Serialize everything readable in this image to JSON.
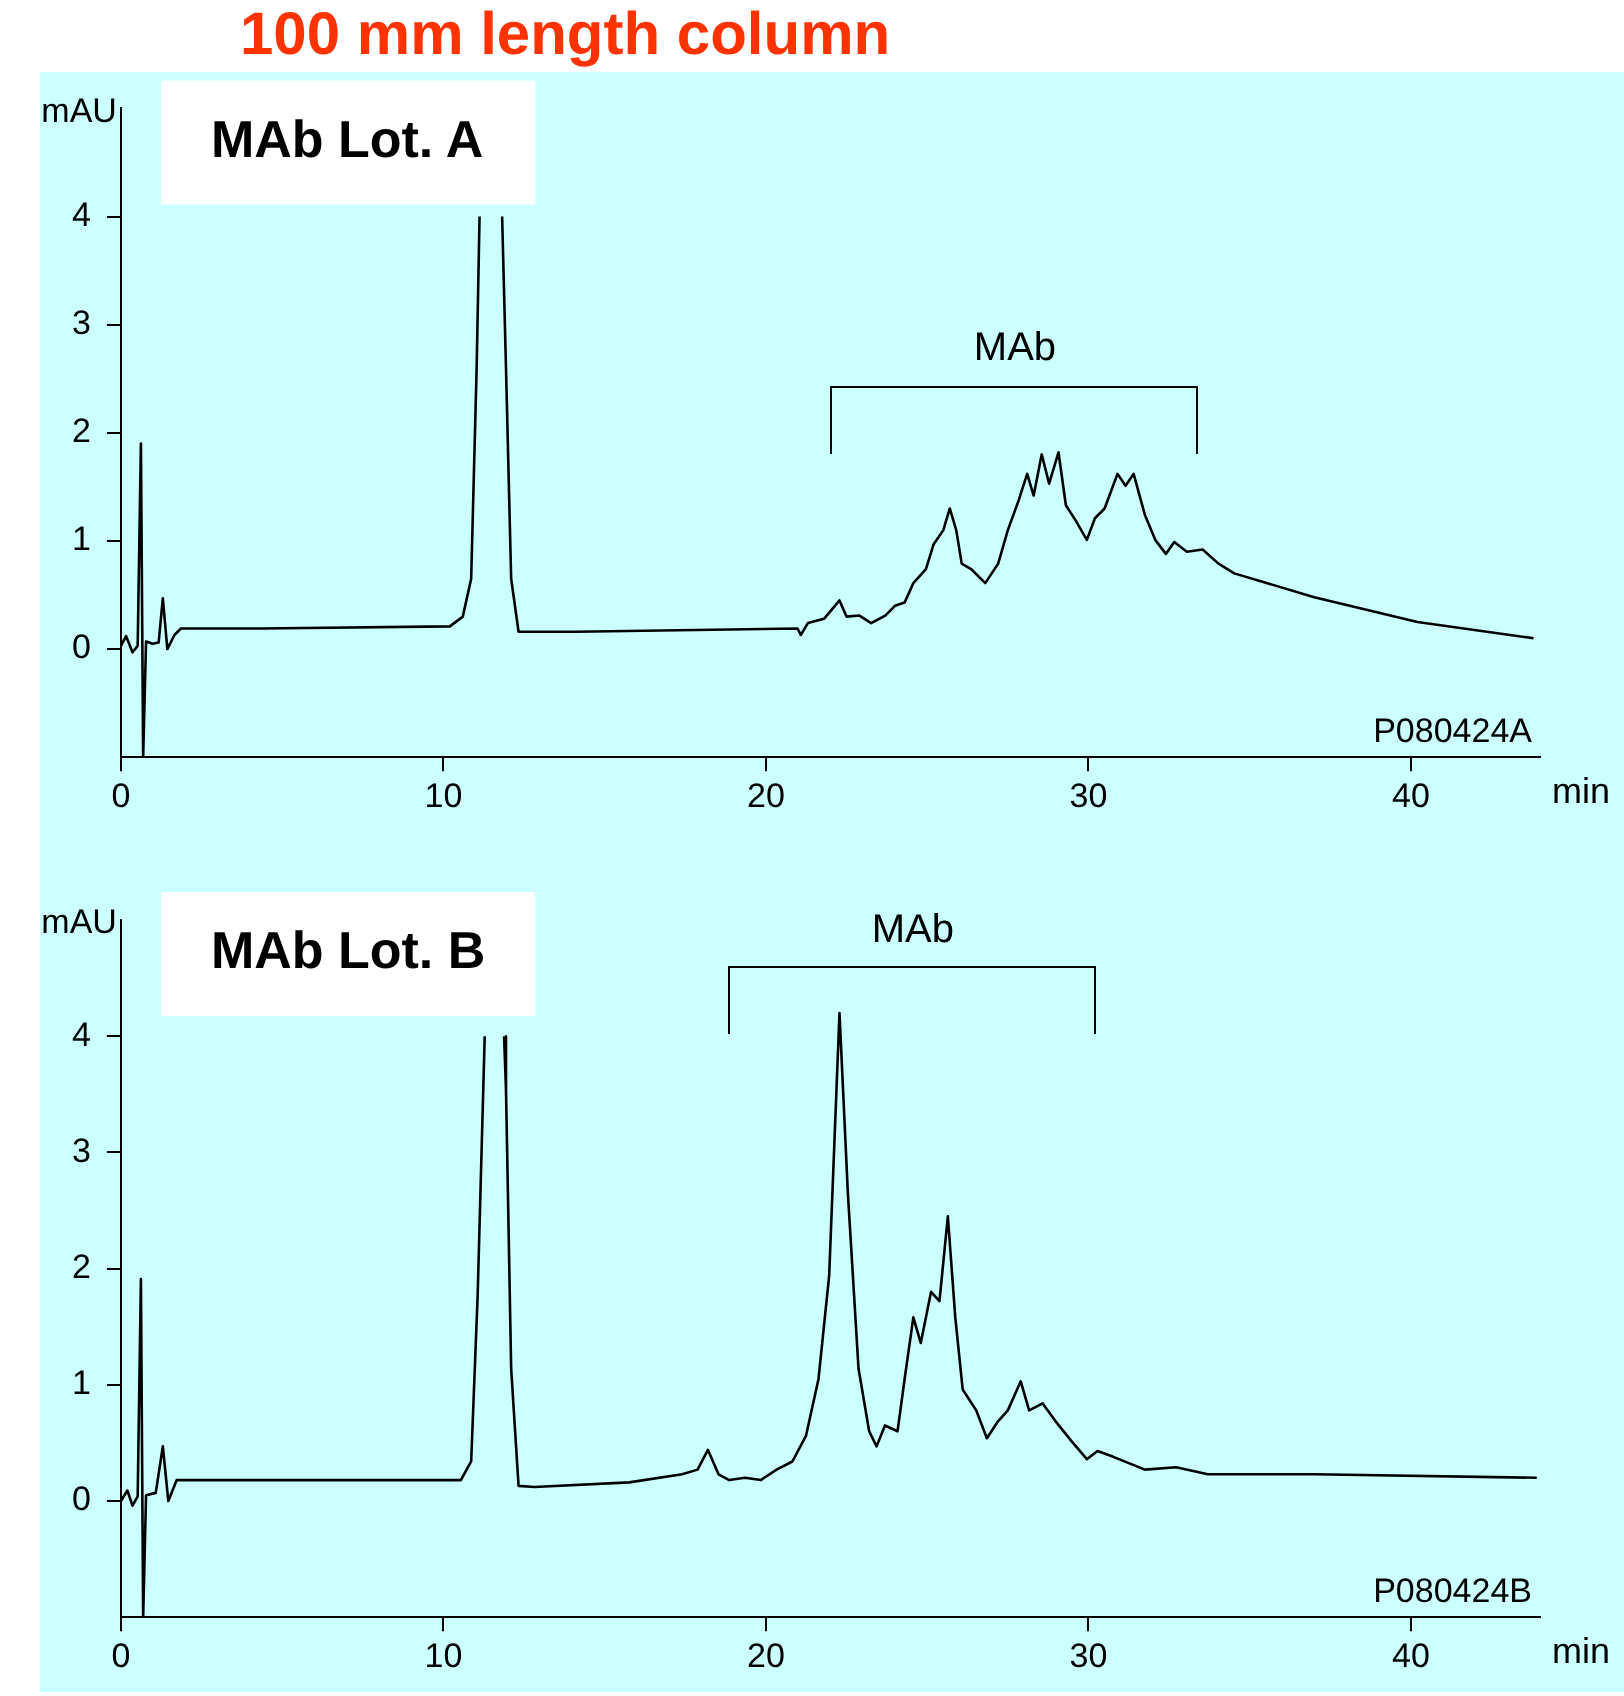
{
  "chart_data": [
    {
      "type": "line",
      "title": "100 mm length column",
      "xlabel": "min",
      "ylabel": "mAU",
      "xlim": [
        0,
        44
      ],
      "ylim": [
        -1,
        5
      ],
      "xticks": [
        0,
        10,
        20,
        30,
        40
      ],
      "yticks": [
        0,
        1,
        2,
        3,
        4
      ],
      "grid": false,
      "legend": false,
      "marker": "none",
      "annotations": [
        "MAb Lot. A",
        "P080424A",
        "MAb"
      ],
      "series": [
        {
          "color": "#000000",
          "x": [
            0,
            0.16,
            0.36,
            0.52,
            0.62,
            0.69,
            0.78,
            0.98,
            1.17,
            1.3,
            1.44,
            1.66,
            1.86,
            4.34,
            10.2,
            10.6,
            10.86,
            11.03,
            11.12,
            11.5,
            11.82,
            11.94,
            12.1,
            12.33,
            14.1,
            20.98,
            21.08,
            21.3,
            21.8,
            22.28,
            22.5,
            22.9,
            23.26,
            23.7,
            24.0,
            24.3,
            24.57,
            24.96,
            25.2,
            25.5,
            25.7,
            25.9,
            26.07,
            26.36,
            26.8,
            27.2,
            27.5,
            27.83,
            28.1,
            28.3,
            28.55,
            28.78,
            29.07,
            29.3,
            29.6,
            29.95,
            30.2,
            30.5,
            30.9,
            31.15,
            31.4,
            31.75,
            32.07,
            32.4,
            32.66,
            33.05,
            33.54,
            34.03,
            34.52,
            37.0,
            40.2,
            43.8
          ],
          "values": [
            0.03,
            0.12,
            -0.03,
            0.03,
            1.9,
            -1,
            0.07,
            0.05,
            0.06,
            0.47,
            0.0,
            0.13,
            0.19,
            0.19,
            0.21,
            0.3,
            0.65,
            2.6,
            4.0,
            null,
            4.0,
            2.6,
            0.65,
            0.16,
            0.16,
            0.19,
            0.13,
            0.24,
            0.28,
            0.45,
            0.3,
            0.31,
            0.24,
            0.31,
            0.4,
            0.43,
            0.61,
            0.74,
            0.97,
            1.1,
            1.3,
            1.1,
            0.79,
            0.74,
            0.61,
            0.79,
            1.1,
            1.37,
            1.62,
            1.42,
            1.8,
            1.53,
            1.82,
            1.33,
            1.19,
            1.01,
            1.21,
            1.3,
            1.62,
            1.51,
            1.62,
            1.24,
            1.01,
            0.88,
            0.99,
            0.9,
            0.92,
            0.79,
            0.7,
            0.48,
            0.25,
            0.1
          ]
        }
      ]
    },
    {
      "type": "line",
      "xlabel": "min",
      "ylabel": "mAU",
      "xlim": [
        0,
        44
      ],
      "ylim": [
        -1,
        5
      ],
      "xticks": [
        0,
        10,
        20,
        30,
        40
      ],
      "yticks": [
        0,
        1,
        2,
        3,
        4
      ],
      "grid": false,
      "legend": false,
      "marker": "none",
      "annotations": [
        "MAb Lot. B",
        "P080424B",
        "MAb"
      ],
      "series": [
        {
          "color": "#000000",
          "x": [
            0,
            0.2,
            0.36,
            0.52,
            0.62,
            0.69,
            0.78,
            1.08,
            1.3,
            1.47,
            1.73,
            1.89,
            10.54,
            10.86,
            11.06,
            11.28,
            11.55,
            11.88,
            11.94,
            12.1,
            12.33,
            12.82,
            15.76,
            17.4,
            17.88,
            18.2,
            18.53,
            18.86,
            19.35,
            19.84,
            20.33,
            20.82,
            21.24,
            21.63,
            21.96,
            22.28,
            22.54,
            22.87,
            23.2,
            23.43,
            23.69,
            24.08,
            24.3,
            24.57,
            24.8,
            25.12,
            25.38,
            25.64,
            25.87,
            26.1,
            26.52,
            26.85,
            27.18,
            27.5,
            27.9,
            28.16,
            28.58,
            28.97,
            29.46,
            29.95,
            30.28,
            30.77,
            31.75,
            32.72,
            33.7,
            37.0,
            43.9
          ],
          "values": [
            0,
            0.09,
            -0.04,
            0.04,
            1.91,
            -1,
            0.05,
            0.07,
            0.47,
            0,
            0.18,
            0.18,
            0.18,
            0.34,
            1.76,
            4.0,
            null,
            4.0,
            3.54,
            1.14,
            0.13,
            0.12,
            0.16,
            0.23,
            0.27,
            0.44,
            0.23,
            0.18,
            0.2,
            0.18,
            0.27,
            0.34,
            0.56,
            1.05,
            1.94,
            4.2,
            2.65,
            1.14,
            0.6,
            0.47,
            0.65,
            0.6,
            1.05,
            1.58,
            1.36,
            1.8,
            1.72,
            2.45,
            1.58,
            0.96,
            0.78,
            0.54,
            0.68,
            0.78,
            1.03,
            0.78,
            0.84,
            0.69,
            0.52,
            0.36,
            0.43,
            0.38,
            0.27,
            0.29,
            0.23,
            0.23,
            0.2
          ]
        }
      ]
    }
  ]
}
